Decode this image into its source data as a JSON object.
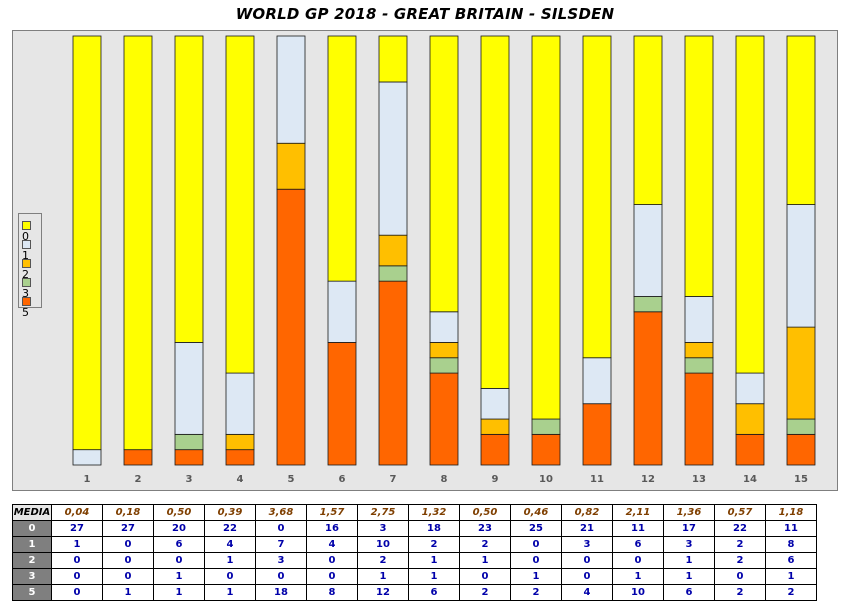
{
  "title": "WORLD GP 2018 - GREAT BRITAIN - SILSDEN",
  "colors": {
    "0": "#ffff00",
    "1": "#dde8f4",
    "2": "#ffbf00",
    "3": "#a9d08e",
    "5": "#ff6600",
    "frame": "#e6e6e6",
    "table_head": "#7f7f7f"
  },
  "legend": [
    "0",
    "1",
    "2",
    "3",
    "5"
  ],
  "chart_data": {
    "type": "bar",
    "stacked": true,
    "normalized": "percent",
    "title": "WORLD GP 2018 - GREAT BRITAIN - SILSDEN",
    "categories": [
      "1",
      "2",
      "3",
      "4",
      "5",
      "6",
      "7",
      "8",
      "9",
      "10",
      "11",
      "12",
      "13",
      "14",
      "15"
    ],
    "series": [
      {
        "name": "5",
        "values": [
          0,
          1,
          1,
          1,
          18,
          8,
          12,
          6,
          2,
          2,
          4,
          10,
          6,
          2,
          2
        ]
      },
      {
        "name": "3",
        "values": [
          0,
          0,
          1,
          0,
          0,
          0,
          1,
          1,
          0,
          1,
          0,
          1,
          1,
          0,
          1
        ]
      },
      {
        "name": "2",
        "values": [
          0,
          0,
          0,
          1,
          3,
          0,
          2,
          1,
          1,
          0,
          0,
          0,
          1,
          2,
          6
        ]
      },
      {
        "name": "1",
        "values": [
          1,
          0,
          6,
          4,
          7,
          4,
          10,
          2,
          2,
          0,
          3,
          6,
          3,
          2,
          8
        ]
      },
      {
        "name": "0",
        "values": [
          27,
          27,
          20,
          22,
          0,
          16,
          3,
          18,
          23,
          25,
          21,
          11,
          17,
          22,
          11
        ]
      }
    ],
    "legend_position": "left",
    "grid": false
  },
  "table": {
    "media_label": "MEDIA",
    "media": [
      "0,04",
      "0,18",
      "0,50",
      "0,39",
      "3,68",
      "1,57",
      "2,75",
      "1,32",
      "0,50",
      "0,46",
      "0,82",
      "2,11",
      "1,36",
      "0,57",
      "1,18"
    ],
    "rows": [
      {
        "label": "0",
        "values": [
          "27",
          "27",
          "20",
          "22",
          "0",
          "16",
          "3",
          "18",
          "23",
          "25",
          "21",
          "11",
          "17",
          "22",
          "11"
        ]
      },
      {
        "label": "1",
        "values": [
          "1",
          "0",
          "6",
          "4",
          "7",
          "4",
          "10",
          "2",
          "2",
          "0",
          "3",
          "6",
          "3",
          "2",
          "8"
        ]
      },
      {
        "label": "2",
        "values": [
          "0",
          "0",
          "0",
          "1",
          "3",
          "0",
          "2",
          "1",
          "1",
          "0",
          "0",
          "0",
          "1",
          "2",
          "6"
        ]
      },
      {
        "label": "3",
        "values": [
          "0",
          "0",
          "1",
          "0",
          "0",
          "0",
          "1",
          "1",
          "0",
          "1",
          "0",
          "1",
          "1",
          "0",
          "1"
        ]
      },
      {
        "label": "5",
        "values": [
          "0",
          "1",
          "1",
          "1",
          "18",
          "8",
          "12",
          "6",
          "2",
          "2",
          "4",
          "10",
          "6",
          "2",
          "2"
        ]
      }
    ]
  }
}
